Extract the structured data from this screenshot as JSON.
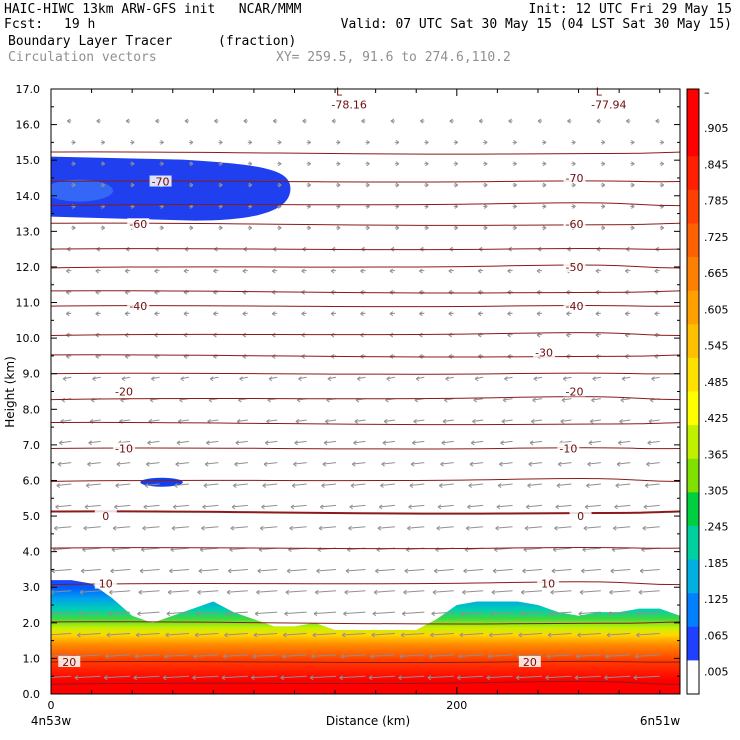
{
  "header": {
    "title": "HAIC-HIWC 13km ARW-GFS init   NCAR/MMM",
    "init": "Init: 12 UTC Fri 29 May 15",
    "fcst_label": "Fcst:",
    "fcst_value": "19 h",
    "valid": "Valid: 07 UTC Sat 30 May 15 (04 LST Sat 30 May 15)",
    "field_name": "Boundary Layer Tracer",
    "field_units": "(fraction)",
    "overlay_name": "Circulation vectors",
    "xy_range": "XY= 259.5, 91.6 to 274.6,110.2"
  },
  "chart_data": {
    "type": "heatmap",
    "xlabel": "Distance (km)",
    "ylabel": "Height (km)",
    "xlim": [
      0,
      310
    ],
    "ylim": [
      0.0,
      17.0
    ],
    "x_ticks": [
      {
        "value": 0,
        "label": "0"
      },
      {
        "value": 200,
        "label": "200"
      }
    ],
    "x_endpoint_labels": [
      "4n53w",
      "6n51w"
    ],
    "y_ticks": [
      "0.0",
      "1.0",
      "2.0",
      "3.0",
      "4.0",
      "5.0",
      "6.0",
      "7.0",
      "8.0",
      "9.0",
      "10.0",
      "11.0",
      "12.0",
      "13.0",
      "14.0",
      "15.0",
      "16.0",
      "17.0"
    ],
    "colorbar": {
      "labels": [
        "–",
        ".905",
        ".845",
        ".785",
        ".725",
        ".665",
        ".605",
        ".545",
        ".485",
        ".425",
        ".365",
        ".305",
        ".245",
        ".185",
        ".125",
        ".065",
        ".005"
      ],
      "colors": [
        "#ff0000",
        "#ff0000",
        "#ff2000",
        "#ff4000",
        "#ff6000",
        "#ff8000",
        "#ffa000",
        "#ffc000",
        "#ffe000",
        "#ffff00",
        "#c0f000",
        "#80e000",
        "#00d040",
        "#00d0a0",
        "#00b0e0",
        "#0080ff",
        "#2040ff",
        "#ffffff"
      ]
    },
    "tracer_boundary_top": {
      "x_km": [
        0,
        10,
        20,
        30,
        40,
        50,
        60,
        70,
        80,
        90,
        100,
        110,
        120,
        130,
        140,
        150,
        160,
        170,
        180,
        190,
        200,
        210,
        220,
        230,
        240,
        250,
        260,
        270,
        280,
        290,
        300,
        310
      ],
      "height_km": [
        3.2,
        3.2,
        3.1,
        2.7,
        2.2,
        2.0,
        2.2,
        2.4,
        2.6,
        2.3,
        2.1,
        1.9,
        1.9,
        2.0,
        1.8,
        1.8,
        1.8,
        1.8,
        1.8,
        2.1,
        2.5,
        2.6,
        2.6,
        2.6,
        2.5,
        2.3,
        2.2,
        2.3,
        2.3,
        2.4,
        2.4,
        2.2
      ]
    },
    "upper_tracer_patches": [
      {
        "x_km": [
          0,
          118
        ],
        "height_km": [
          13.3,
          15.1
        ],
        "value": "0.005–0.065"
      },
      {
        "x_km": [
          44,
          65
        ],
        "height_km": [
          5.85,
          6.05
        ],
        "value": "0.005–0.065"
      }
    ],
    "isotherm_labels": [
      {
        "label": "-70",
        "x": 54,
        "y": 14.4
      },
      {
        "label": "-70",
        "x": 258,
        "y": 14.5
      },
      {
        "label": "-60",
        "x": 43,
        "y": 13.2
      },
      {
        "label": "-60",
        "x": 258,
        "y": 13.2
      },
      {
        "label": "-50",
        "x": 258,
        "y": 12.0
      },
      {
        "label": "-40",
        "x": 43,
        "y": 10.9
      },
      {
        "label": "-40",
        "x": 258,
        "y": 10.9
      },
      {
        "label": "-30",
        "x": 243,
        "y": 9.6
      },
      {
        "label": "-20",
        "x": 36,
        "y": 8.5
      },
      {
        "label": "-20",
        "x": 258,
        "y": 8.5
      },
      {
        "label": "-10",
        "x": 36,
        "y": 6.9
      },
      {
        "label": "-10",
        "x": 255,
        "y": 6.9
      },
      {
        "label": "0",
        "x": 27,
        "y": 5.0
      },
      {
        "label": "0",
        "x": 261,
        "y": 5.0
      },
      {
        "label": "10",
        "x": 27,
        "y": 3.1
      },
      {
        "label": "10",
        "x": 245,
        "y": 3.1
      },
      {
        "label": "20",
        "x": 9,
        "y": 0.9
      },
      {
        "label": "20",
        "x": 236,
        "y": 0.9
      }
    ],
    "isotherm_heights_km": [
      15.2,
      14.4,
      13.75,
      13.2,
      12.5,
      12.0,
      11.3,
      10.9,
      10.1,
      9.5,
      9.0,
      8.3,
      7.6,
      6.9,
      6.0,
      5.1,
      4.1,
      3.1,
      2.0,
      0.9,
      0.3
    ],
    "min_labels": [
      {
        "label": "L",
        "value": "-78.16",
        "x": 142,
        "y": 16.7
      },
      {
        "label": "L",
        "value": "-77.94",
        "x": 270,
        "y": 16.7
      }
    ]
  }
}
